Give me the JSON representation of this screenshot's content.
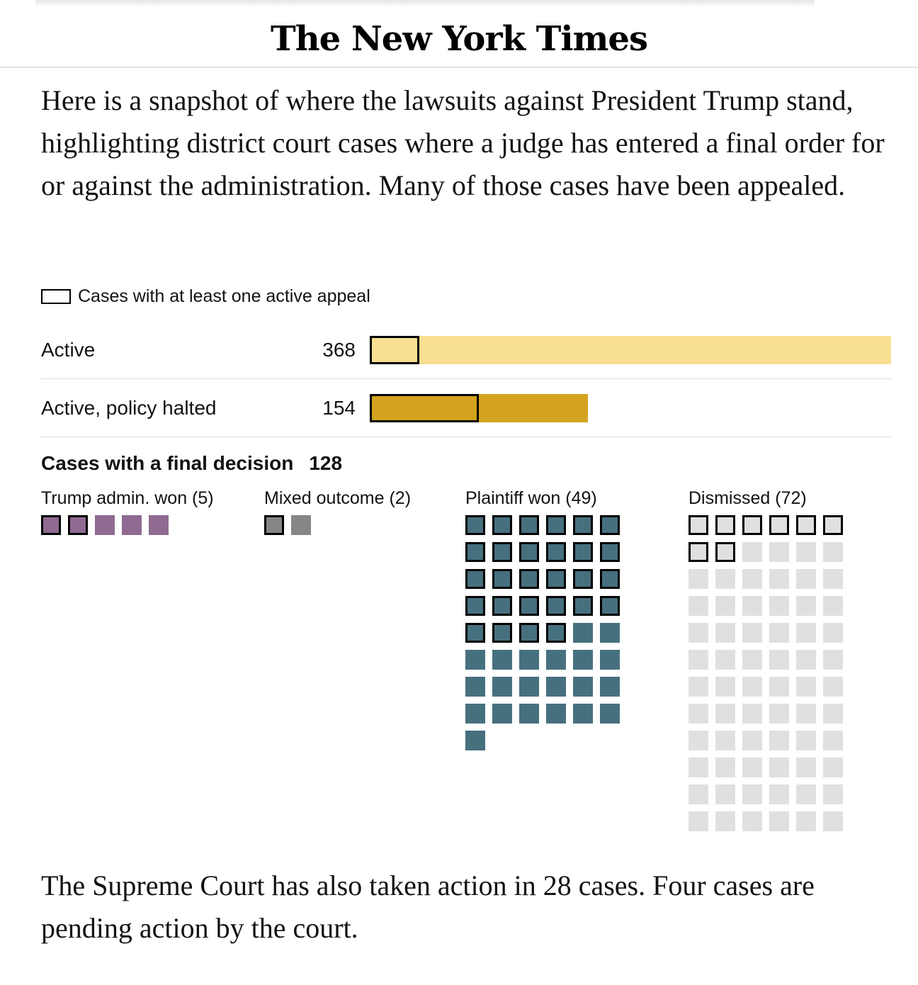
{
  "header": {
    "masthead": "The New York Times"
  },
  "intro_text": "Here is a snapshot of where the lawsuits against President Trump stand, highlighting district court cases where a judge has entered a final order for or against the administration. Many of those cases have been appealed.",
  "outro_text": "The Supreme Court has also taken action in 28 cases. Four cases are pending action by the court.",
  "chart_data": [
    {
      "type": "bar",
      "legend": [
        {
          "label": "Cases with at least one active appeal",
          "style": "black outline"
        }
      ],
      "scale_max": 368,
      "categories": [
        "Active",
        "Active, policy halted"
      ],
      "values": [
        368,
        154
      ],
      "appeal_estimates": [
        35,
        77
      ],
      "colors": [
        "#f9df91",
        "#d3a31f"
      ],
      "outline_color": "#000000"
    },
    {
      "type": "waffle",
      "title": "Cases with a final decision",
      "total": "128",
      "groups": [
        {
          "label": "Trump admin. won (5)",
          "count": 5,
          "appealed": 2,
          "color": "#8f6b91"
        },
        {
          "label": "Mixed outcome (2)",
          "count": 2,
          "appealed": 1,
          "color": "#868686"
        },
        {
          "label": "Plaintiff won (49)",
          "count": 49,
          "appealed": 28,
          "color": "#47707f"
        },
        {
          "label": "Dismissed (72)",
          "count": 72,
          "appealed": 8,
          "color": "#e0e0e0"
        }
      ],
      "columns": 6
    }
  ]
}
